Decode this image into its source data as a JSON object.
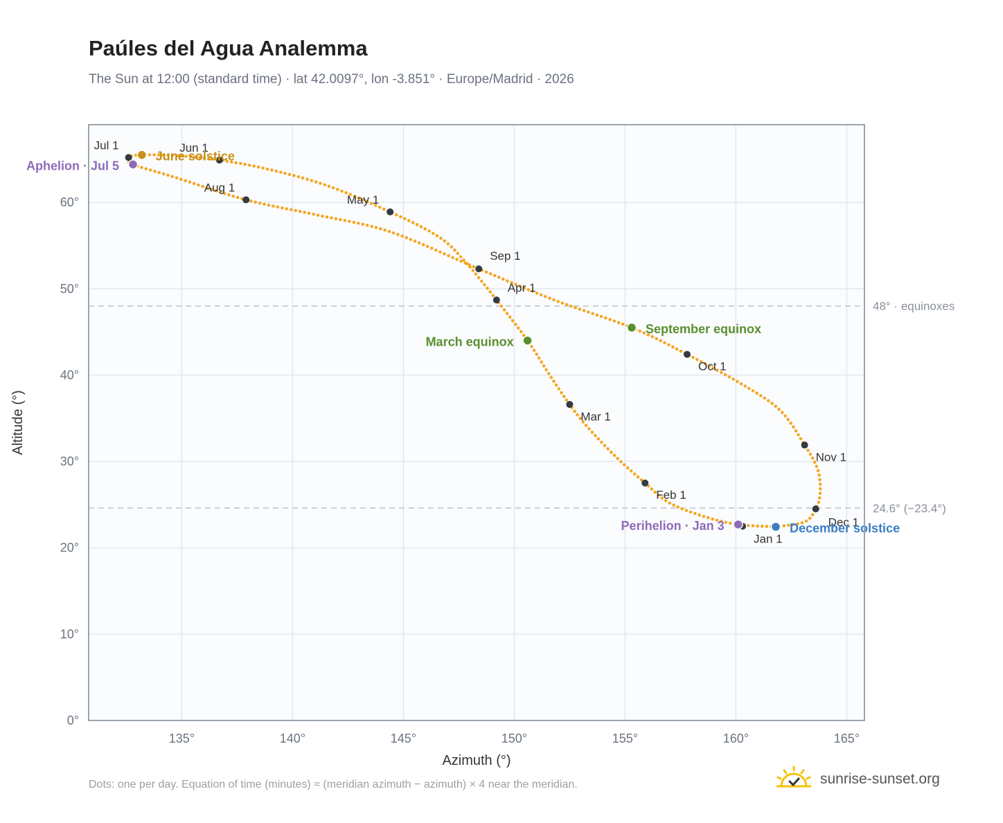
{
  "header": {
    "title": "Paúles del Agua Analemma",
    "subtitle": "The Sun at 12:00 (standard time) · lat 42.0097°, lon -3.851° · Europe/Madrid · 2026"
  },
  "footer": {
    "note": "Dots: one per day. Equation of time (minutes) ≈ (meridian azimuth − azimuth) × 4 near the meridian.",
    "brand": "sunrise-sunset.org",
    "brand_icon": "sun-logo-icon"
  },
  "colors": {
    "path": "#f5a623",
    "month_marker": "#333a44",
    "solstice_june": "#c8901a",
    "solstice_december": "#3b7dc4",
    "equinox": "#5a8f2e",
    "apsis": "#8e6bb8",
    "reference_line": "#b8c2cc",
    "plot_bg": "#fafcfe",
    "grid": "#e4e8ee",
    "frame": "#9aa4b0"
  },
  "chart_data": {
    "type": "scatter",
    "title": "Paúles del Agua Analemma",
    "xlabel": "Azimuth (°)",
    "ylabel": "Altitude (°)",
    "xlim": [
      130.8,
      165.8
    ],
    "ylim": [
      0,
      69
    ],
    "x_ticks": [
      135,
      140,
      145,
      150,
      155,
      160,
      165
    ],
    "y_ticks": [
      0,
      10,
      20,
      30,
      40,
      50,
      60
    ],
    "x_tick_labels": [
      "135°",
      "140°",
      "145°",
      "150°",
      "155°",
      "160°",
      "165°"
    ],
    "y_tick_labels": [
      "0°",
      "10°",
      "20°",
      "30°",
      "40°",
      "50°",
      "60°"
    ],
    "grid": true,
    "path_points": [
      [
        161.8,
        22.43
      ],
      [
        160.1,
        22.7
      ],
      [
        158.6,
        23.6
      ],
      [
        157.0,
        25.2
      ],
      [
        155.9,
        27.5
      ],
      [
        154.6,
        30.5
      ],
      [
        153.3,
        34.0
      ],
      [
        152.5,
        36.6
      ],
      [
        151.6,
        40.0
      ],
      [
        150.6,
        44.0
      ],
      [
        149.2,
        48.7
      ],
      [
        147.8,
        53.1
      ],
      [
        146.6,
        56.0
      ],
      [
        144.4,
        58.9
      ],
      [
        141.5,
        62.0
      ],
      [
        138.8,
        63.9
      ],
      [
        136.7,
        64.9
      ],
      [
        134.9,
        65.4
      ],
      [
        133.2,
        65.5
      ],
      [
        132.6,
        65.2
      ],
      [
        132.8,
        64.4
      ],
      [
        134.7,
        62.9
      ],
      [
        137.9,
        60.3
      ],
      [
        141.0,
        58.6
      ],
      [
        144.4,
        56.6
      ],
      [
        148.4,
        52.3
      ],
      [
        151.8,
        48.7
      ],
      [
        155.3,
        45.5
      ],
      [
        157.8,
        42.4
      ],
      [
        160.3,
        38.9
      ],
      [
        162.0,
        35.9
      ],
      [
        163.1,
        31.9
      ],
      [
        163.7,
        29.0
      ],
      [
        163.8,
        26.3
      ],
      [
        163.6,
        24.5
      ],
      [
        163.1,
        23.0
      ],
      [
        161.8,
        22.43
      ]
    ],
    "month_markers": [
      {
        "label": "Jan 1",
        "az": 160.3,
        "alt": 22.5
      },
      {
        "label": "Feb 1",
        "az": 155.9,
        "alt": 27.5
      },
      {
        "label": "Mar 1",
        "az": 152.5,
        "alt": 36.6
      },
      {
        "label": "Apr 1",
        "az": 149.2,
        "alt": 48.7
      },
      {
        "label": "May 1",
        "az": 144.4,
        "alt": 58.9
      },
      {
        "label": "Jun 1",
        "az": 136.7,
        "alt": 64.9
      },
      {
        "label": "Jul 1",
        "az": 132.6,
        "alt": 65.2
      },
      {
        "label": "Aug 1",
        "az": 137.9,
        "alt": 60.3
      },
      {
        "label": "Sep 1",
        "az": 148.4,
        "alt": 52.3
      },
      {
        "label": "Oct 1",
        "az": 157.8,
        "alt": 42.4
      },
      {
        "label": "Nov 1",
        "az": 163.1,
        "alt": 31.9
      },
      {
        "label": "Dec 1",
        "az": 163.6,
        "alt": 24.5
      }
    ],
    "events": [
      {
        "label": "June solstice",
        "az": 133.2,
        "alt": 65.5,
        "kind": "solstice_june"
      },
      {
        "label": "Aphelion · Jul 5",
        "az": 132.8,
        "alt": 64.4,
        "kind": "apsis"
      },
      {
        "label": "March equinox",
        "az": 150.6,
        "alt": 44.0,
        "kind": "equinox"
      },
      {
        "label": "September equinox",
        "az": 155.3,
        "alt": 45.5,
        "kind": "equinox"
      },
      {
        "label": "Perihelion · Jan 3",
        "az": 160.1,
        "alt": 22.7,
        "kind": "apsis"
      },
      {
        "label": "December solstice",
        "az": 161.8,
        "alt": 22.43,
        "kind": "solstice_december"
      }
    ],
    "reference_lines": [
      {
        "label": "48° · equinoxes",
        "alt": 48.0
      },
      {
        "label": "24.6° (−23.4°)",
        "alt": 24.6
      }
    ]
  }
}
